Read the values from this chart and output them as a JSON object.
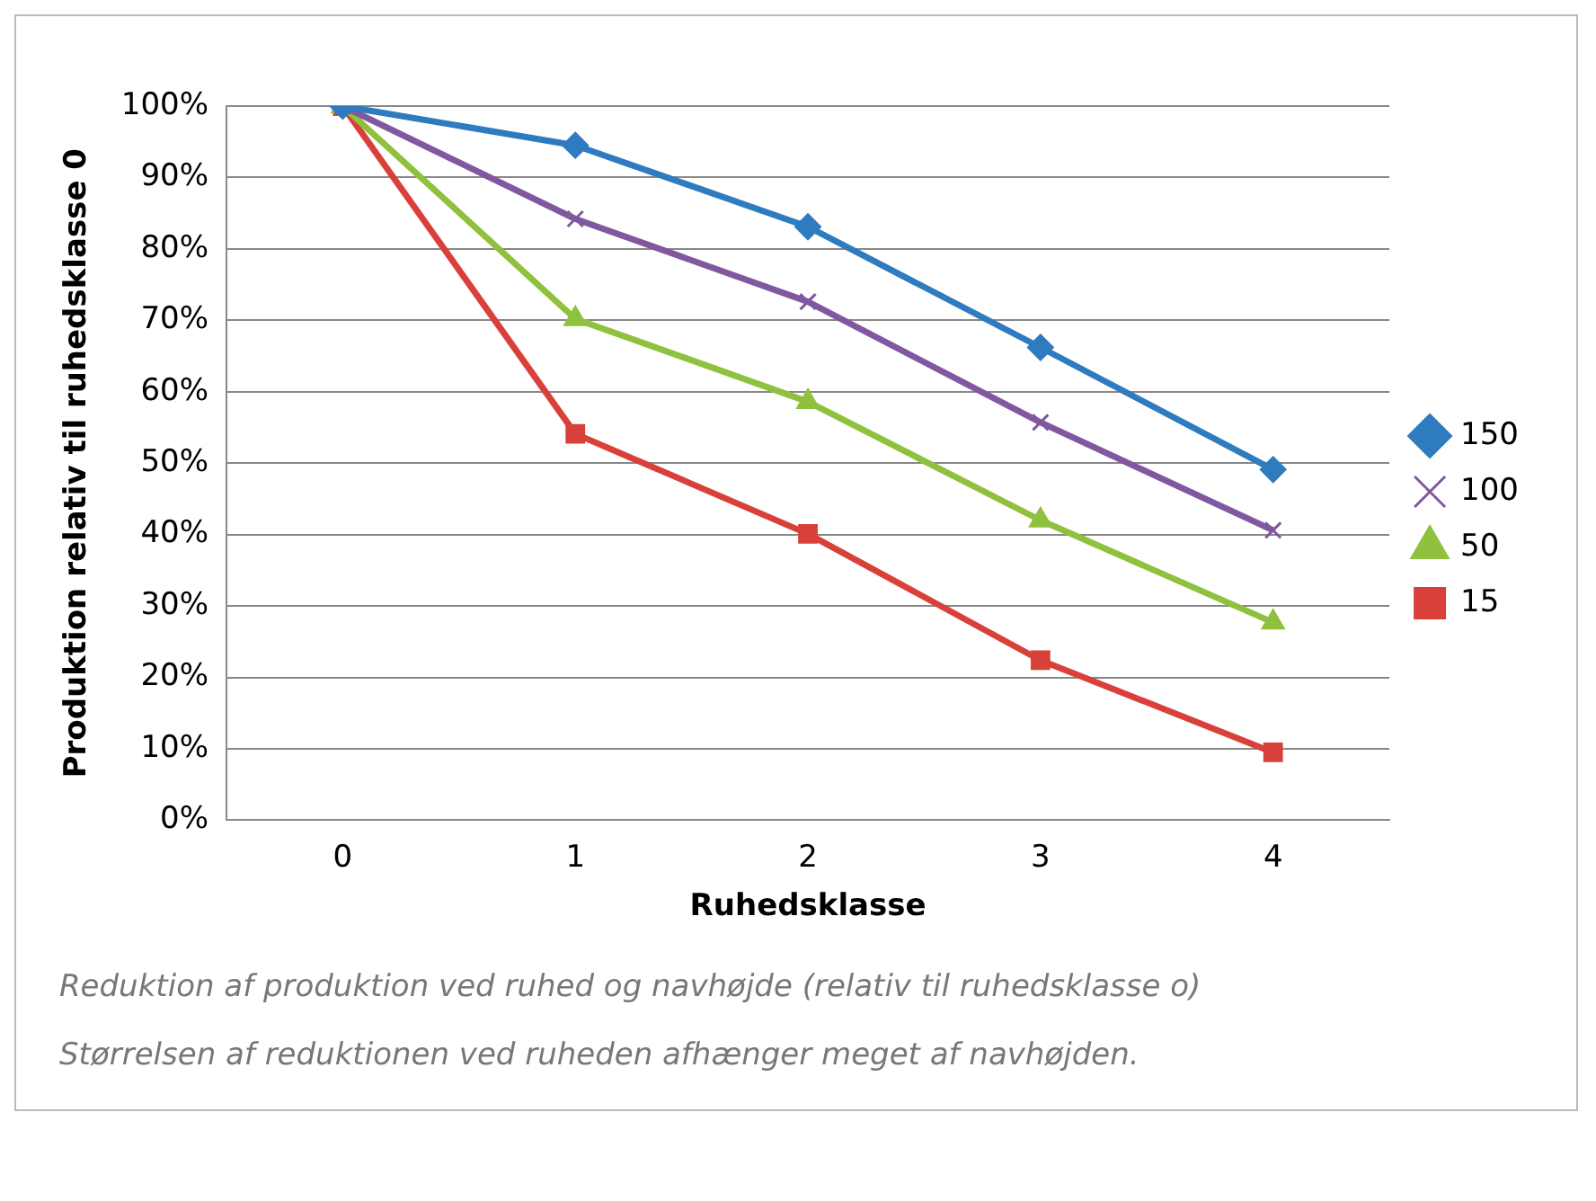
{
  "chart_data": {
    "type": "line",
    "xlabel": "Ruhedsklasse",
    "ylabel": "Produktion relativ til ruhedsklasse 0",
    "categories": [
      "0",
      "1",
      "2",
      "3",
      "4"
    ],
    "series": [
      {
        "name": "150",
        "color": "#2e7bbf",
        "marker": "diamond",
        "values": [
          100,
          94.5,
          83.1,
          66.2,
          49.1
        ]
      },
      {
        "name": "100",
        "color": "#7f58a0",
        "marker": "cross",
        "values": [
          100,
          84.2,
          72.6,
          55.7,
          40.6
        ]
      },
      {
        "name": "50",
        "color": "#8fc13e",
        "marker": "triangle",
        "values": [
          100,
          70.2,
          58.6,
          42,
          27.7
        ]
      },
      {
        "name": "15",
        "color": "#d9403a",
        "marker": "square",
        "values": [
          100,
          54.1,
          40.1,
          22.4,
          9.5
        ]
      }
    ],
    "ylim": [
      0,
      100
    ],
    "yticks": [
      {
        "value": 0,
        "label": "0%"
      },
      {
        "value": 10,
        "label": "10%"
      },
      {
        "value": 20,
        "label": "20%"
      },
      {
        "value": 30,
        "label": "30%"
      },
      {
        "value": 40,
        "label": "40%"
      },
      {
        "value": 50,
        "label": "50%"
      },
      {
        "value": 60,
        "label": "60%"
      },
      {
        "value": 70,
        "label": "70%"
      },
      {
        "value": 80,
        "label": "80%"
      },
      {
        "value": 90,
        "label": "90%"
      },
      {
        "value": 100,
        "label": "100%"
      }
    ],
    "grid": "y",
    "legend": "right",
    "annotations": [
      "Reduktion af produktion ved ruhed og navhøjde (relativ til ruhedsklasse o)",
      "Størrelsen af reduktionen ved ruheden afhænger meget af navhøjden."
    ]
  }
}
